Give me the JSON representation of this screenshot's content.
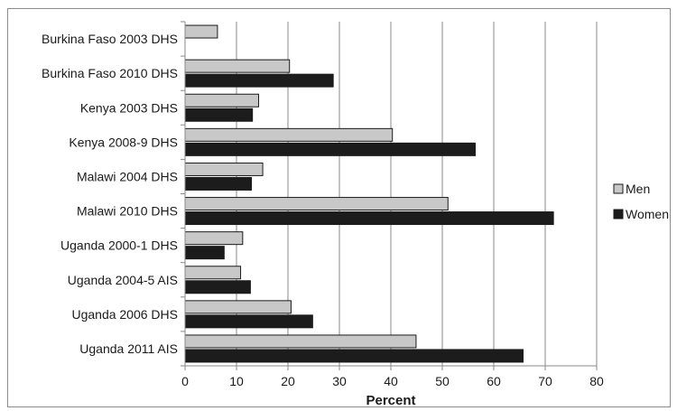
{
  "chart_data": {
    "type": "bar",
    "orientation": "horizontal",
    "categories": [
      "Burkina Faso 2003 DHS",
      "Burkina Faso 2010 DHS",
      "Kenya 2003 DHS",
      "Kenya 2008-9 DHS",
      "Malawi 2004 DHS",
      "Malawi 2010 DHS",
      "Uganda 2000-1 DHS",
      "Uganda 2004-5 AIS",
      "Uganda 2006 DHS",
      "Uganda 2011 AIS"
    ],
    "series": [
      {
        "name": "Men",
        "color": "#c8c8c8",
        "values": [
          6.3,
          20.3,
          14.3,
          40.3,
          15.1,
          51.1,
          11.2,
          10.8,
          20.6,
          44.9
        ]
      },
      {
        "name": "Women",
        "color": "#1c1c1c",
        "values": [
          null,
          28.8,
          13.1,
          56.4,
          12.9,
          71.6,
          7.6,
          12.7,
          24.8,
          65.7
        ]
      }
    ],
    "xlabel": "Percent",
    "ylabel": "",
    "xlim": [
      0,
      80
    ],
    "ticks": [
      "0",
      "10",
      "20",
      "30",
      "40",
      "50",
      "60",
      "70",
      "80"
    ],
    "grid": "vertical",
    "legend": "right"
  }
}
